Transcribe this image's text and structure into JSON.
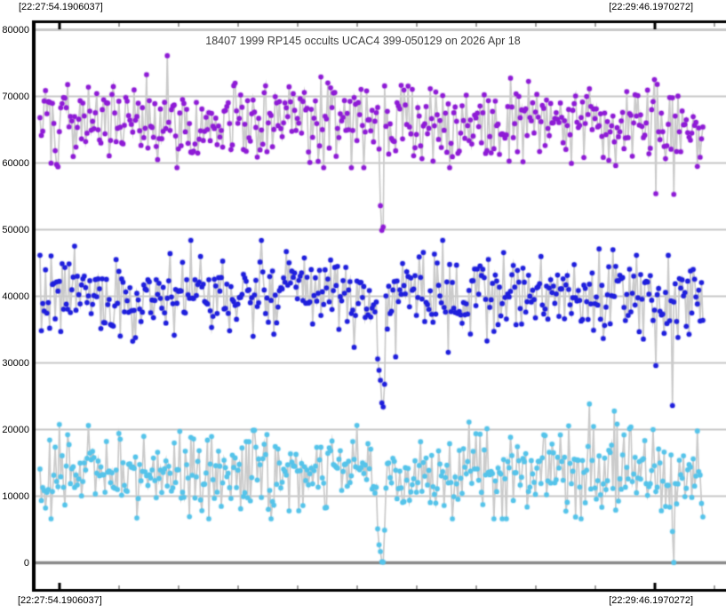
{
  "timestamps": {
    "top_left": "[22:27:54.1906037]",
    "top_right": "[22:29:46.1970272]",
    "bottom_left": "[22:27:54.1906037]",
    "bottom_right": "[22:29:46.1970272]"
  },
  "chart_data": {
    "type": "scatter",
    "title": "18407 1999 RP145 occults UCAC4 399-050129 on 2026 Apr 18",
    "xlabel": "",
    "ylabel": "",
    "x_axis": {
      "start_time_label": "[22:27:54.1906037]",
      "end_time_label": "[22:29:46.1970272]",
      "tick_count": 12,
      "major_tick_indices": [
        0,
        10
      ]
    },
    "y_axis": {
      "min": 0,
      "max": 80000,
      "tick_step": 10000,
      "ticks": [
        0,
        10000,
        20000,
        30000,
        40000,
        50000,
        60000,
        70000,
        80000
      ]
    },
    "grid": true,
    "legend_position": "none",
    "points_per_series": 480,
    "connector_color": "#cbcbcb",
    "grid_color": "#c8c8c8",
    "zero_line_color": "#8a8a8a",
    "axis_color": "#000000",
    "series": [
      {
        "name": "upper-lightcurve-violet",
        "color": "#8e1bd6",
        "marker": "circle",
        "baseline_mean": 66250,
        "noise_sd": 3050,
        "clamp_min": 59300,
        "clamp_max": 76500,
        "seed": 101,
        "event_dip_points": [
          {
            "index": 245,
            "value": 62100
          },
          {
            "index": 246,
            "value": 53600
          },
          {
            "index": 247,
            "value": 49900
          },
          {
            "index": 248,
            "value": 50400
          }
        ],
        "outlier_points": [
          {
            "index": 445,
            "value": 55400
          },
          {
            "index": 458,
            "value": 55300
          }
        ]
      },
      {
        "name": "middle-lightcurve-blue",
        "color": "#1f1fdd",
        "marker": "circle",
        "baseline_mean": 40150,
        "noise_sd": 3050,
        "clamp_min": 30200,
        "clamp_max": 48400,
        "seed": 202,
        "event_dip_points": [
          {
            "index": 244,
            "value": 30600
          },
          {
            "index": 245,
            "value": 28900
          },
          {
            "index": 246,
            "value": 27400
          },
          {
            "index": 247,
            "value": 24000
          },
          {
            "index": 248,
            "value": 23400
          },
          {
            "index": 249,
            "value": 26800
          }
        ],
        "outlier_points": [
          {
            "index": 445,
            "value": 29600
          },
          {
            "index": 457,
            "value": 23600
          }
        ]
      },
      {
        "name": "lower-lightcurve-skyblue",
        "color": "#55c4ea",
        "marker": "circle",
        "baseline_mean": 13700,
        "noise_sd": 3000,
        "clamp_min": 6600,
        "clamp_max": 24300,
        "seed": 303,
        "event_dip_points": [
          {
            "index": 244,
            "value": 5100
          },
          {
            "index": 245,
            "value": 2700
          },
          {
            "index": 246,
            "value": 1700
          },
          {
            "index": 247,
            "value": 150
          },
          {
            "index": 248,
            "value": 100
          },
          {
            "index": 249,
            "value": 4900
          }
        ],
        "outlier_points": [
          {
            "index": 457,
            "value": 4700
          },
          {
            "index": 458,
            "value": 50
          }
        ]
      }
    ]
  }
}
